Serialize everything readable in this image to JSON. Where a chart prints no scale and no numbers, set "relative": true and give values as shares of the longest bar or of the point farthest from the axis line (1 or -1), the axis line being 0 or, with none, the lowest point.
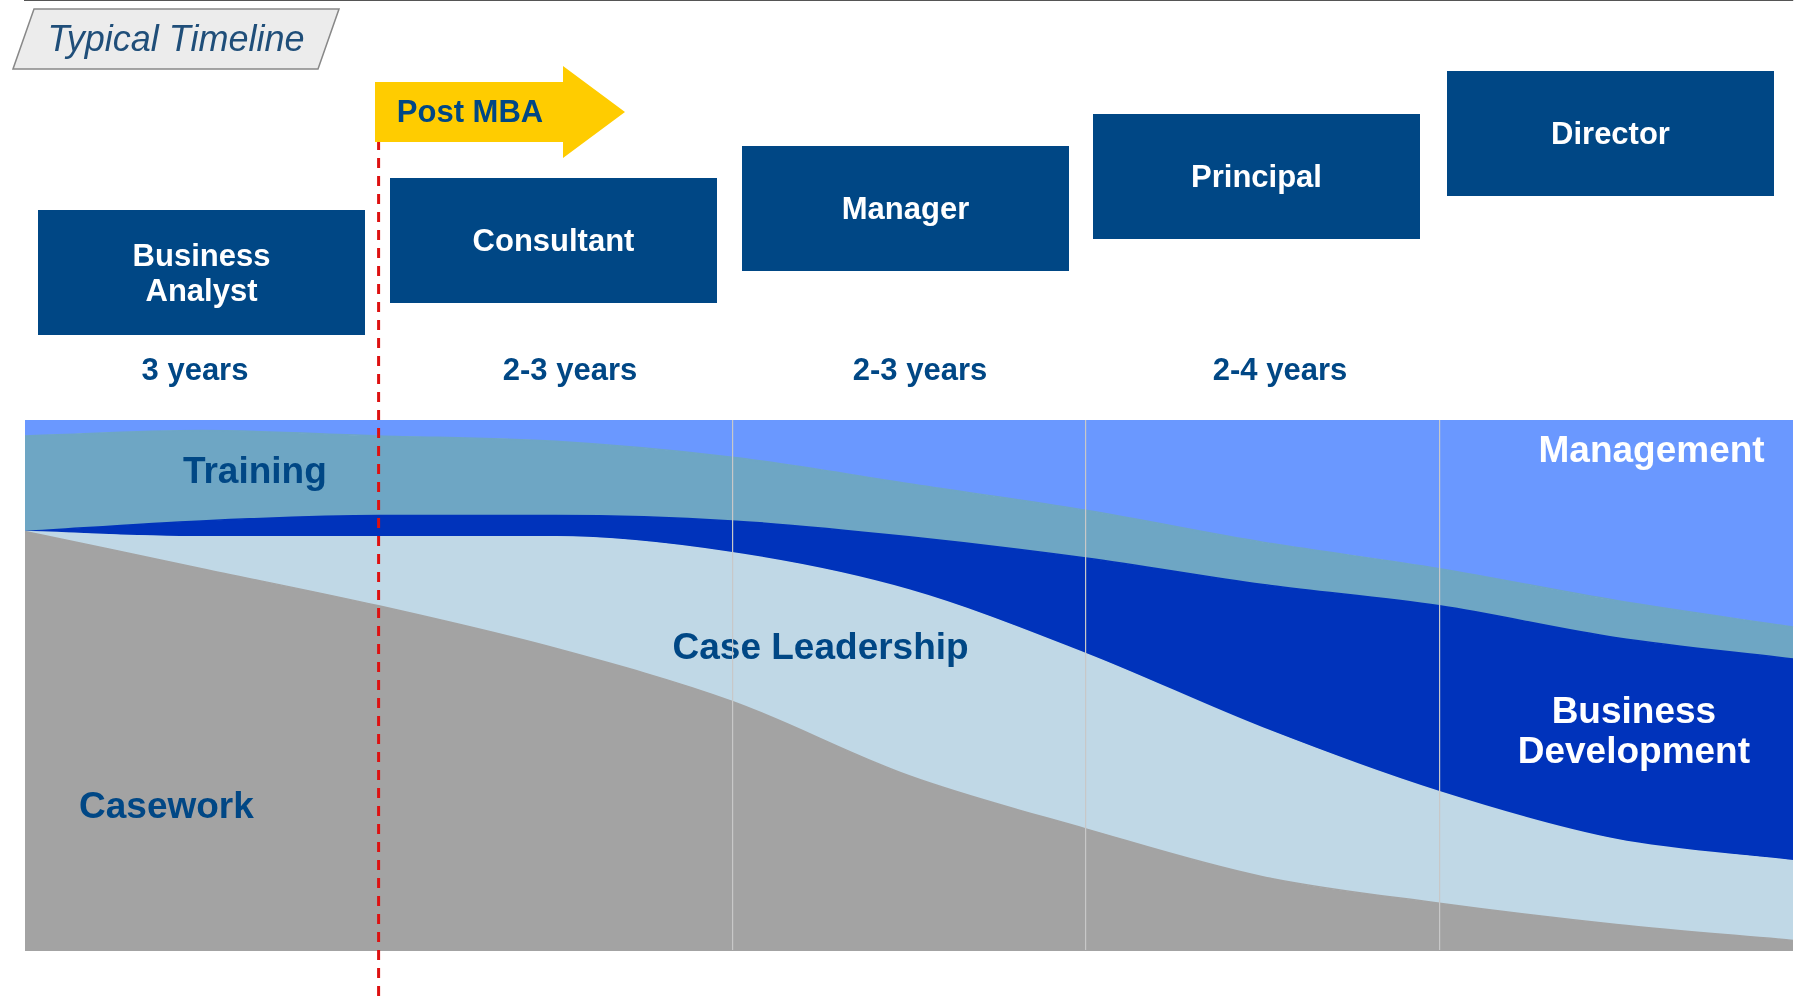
{
  "chart_data": {
    "type": "area",
    "title": "Typical Timeline",
    "stacked": true,
    "relative": true,
    "categories": [
      null,
      null,
      null,
      null,
      null,
      null,
      null,
      null,
      null,
      null,
      null
    ],
    "series": [
      {
        "name": "Casework",
        "color": "#a3a3a3",
        "values": [
          0.79,
          0.72,
          0.65,
          0.57,
          0.47,
          0.33,
          0.23,
          0.14,
          0.09,
          0.05,
          0.02
        ]
      },
      {
        "name": "Case Leadership",
        "color": "#c0d8e6",
        "values": [
          0,
          0.06,
          0.13,
          0.21,
          0.28,
          0.35,
          0.33,
          0.28,
          0.21,
          0.16,
          0.15
        ]
      },
      {
        "name": "Business Development",
        "color": "#0033bb",
        "values": [
          0,
          0.03,
          0.04,
          0.04,
          0.06,
          0.1,
          0.18,
          0.27,
          0.35,
          0.38,
          0.38
        ]
      },
      {
        "name": "Training",
        "color": "#6ea6c4",
        "values": [
          0.18,
          0.17,
          0.15,
          0.14,
          0.12,
          0.1,
          0.09,
          0.08,
          0.07,
          0.07,
          0.06
        ]
      },
      {
        "name": "Management",
        "color": "#6a98ff",
        "values": [
          0.03,
          0.02,
          0.03,
          0.04,
          0.07,
          0.12,
          0.17,
          0.23,
          0.28,
          0.34,
          0.39
        ]
      }
    ],
    "annotations": [
      "Post MBA",
      "Business Analyst",
      "Consultant",
      "Manager",
      "Principal",
      "Director",
      "3  years",
      "2-3  years",
      "2-3 years",
      "2-4 years"
    ],
    "legend": false,
    "grid": "x"
  }
}
